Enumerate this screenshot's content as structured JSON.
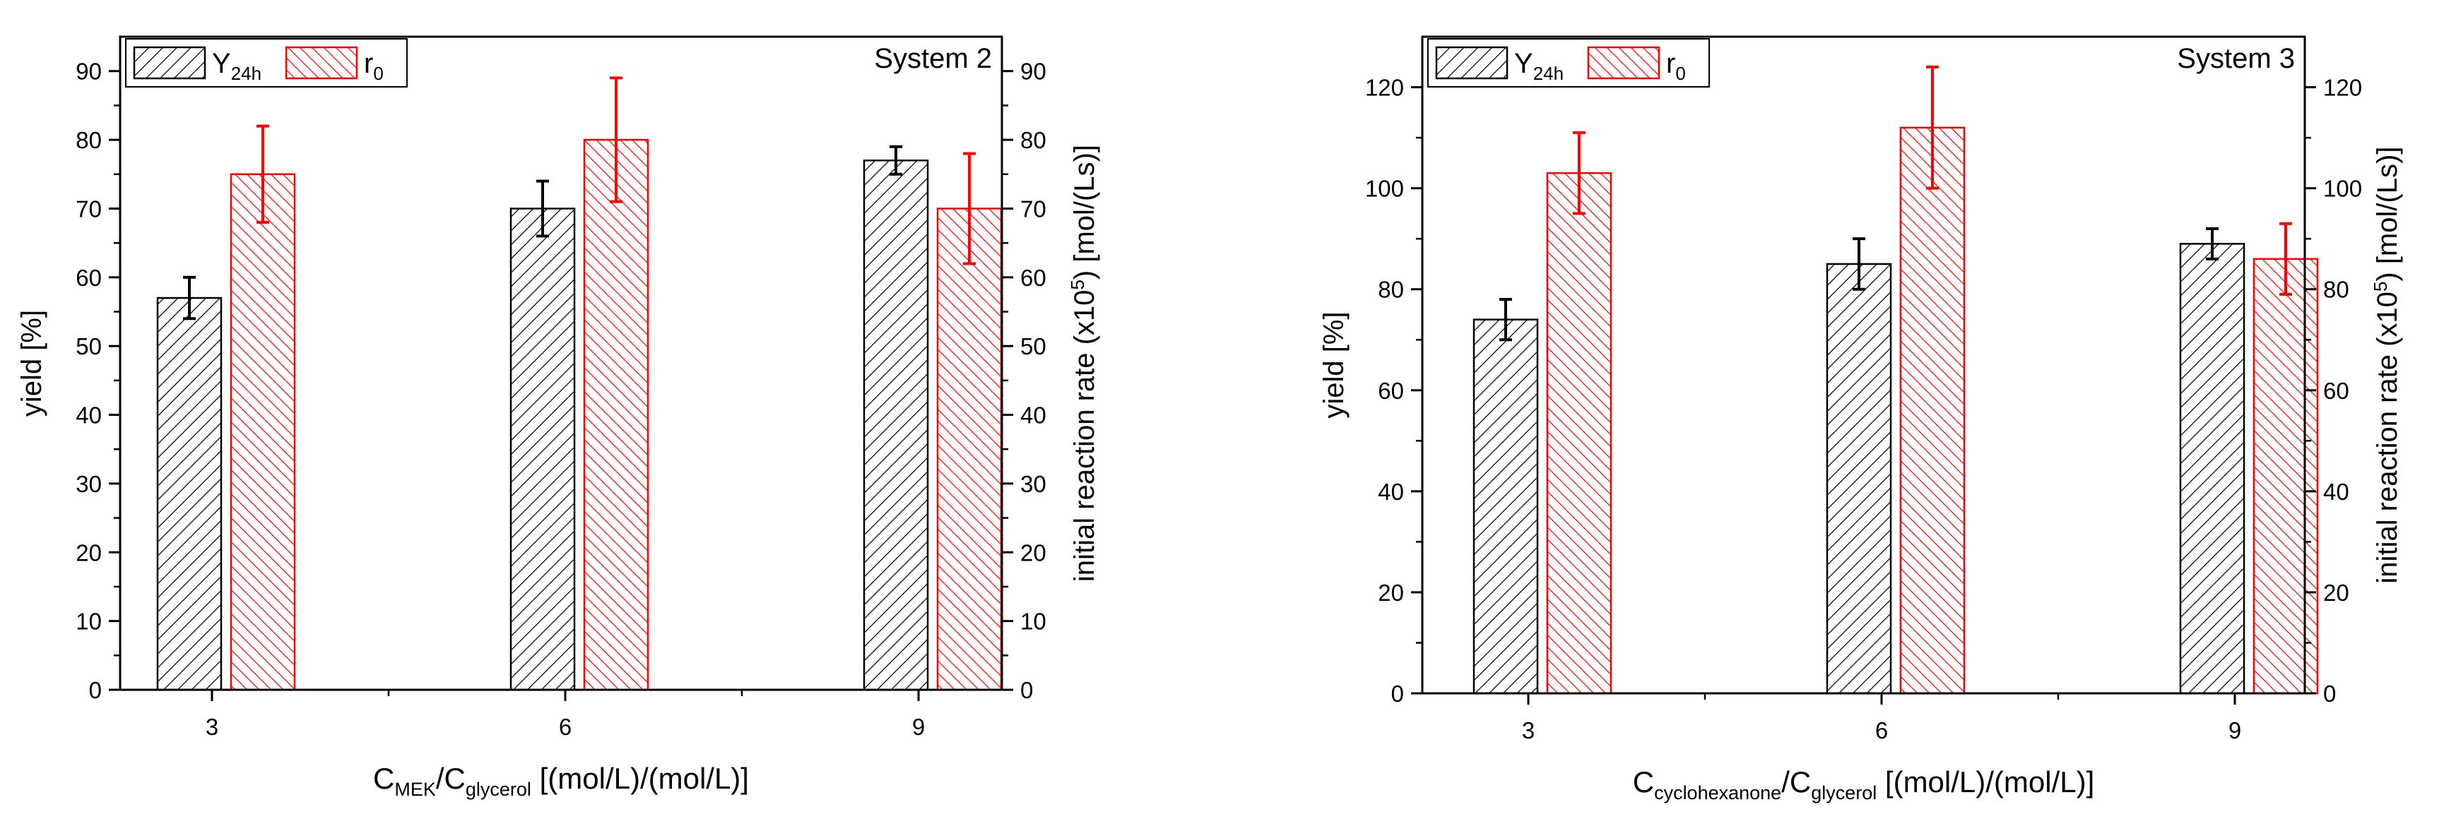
{
  "chart_data": [
    {
      "type": "bar",
      "panel_label": "System 2",
      "categories": [
        "3",
        "6",
        "9"
      ],
      "xlabel": {
        "base": "C",
        "sub1": "MEK",
        "mid": "/C",
        "sub2": "glycerol",
        "rest": " [(mol/L)/(mol/L)]"
      },
      "ylabel_left": "yield [%]",
      "ylabel_right": {
        "pre": "initial reaction rate (x10",
        "sup": "5",
        "post": ") [mol/(Ls)]"
      },
      "ylim_left": [
        0,
        95
      ],
      "ylim_right": [
        0,
        95
      ],
      "ticks_left": [
        "0",
        "10",
        "20",
        "30",
        "40",
        "50",
        "60",
        "70",
        "80",
        "90"
      ],
      "ticks_right": [
        "0",
        "10",
        "20",
        "30",
        "40",
        "50",
        "60",
        "70",
        "80",
        "90"
      ],
      "series": [
        {
          "name": "Y",
          "sub": "24h",
          "axis": "left",
          "color": "#000000",
          "values": [
            57,
            70,
            77
          ],
          "errors": [
            3,
            4,
            2
          ]
        },
        {
          "name": "r",
          "sub": "0",
          "axis": "right",
          "color": "#ff0000",
          "values": [
            75,
            80,
            70
          ],
          "errors": [
            7,
            9,
            8
          ]
        }
      ]
    },
    {
      "type": "bar",
      "panel_label": "System 3",
      "categories": [
        "3",
        "6",
        "9"
      ],
      "xlabel": {
        "base": "C",
        "sub1": "cyclohexanone",
        "mid": "/C",
        "sub2": "glycerol",
        "rest": " [(mol/L)/(mol/L)]"
      },
      "ylabel_left": "yield [%]",
      "ylabel_right": {
        "pre": "initial reaction rate (x10",
        "sup": "5",
        "post": ") [mol/(Ls)]"
      },
      "ylim_left": [
        0,
        130
      ],
      "ylim_right": [
        0,
        130
      ],
      "ticks_left": [
        "0",
        "20",
        "40",
        "60",
        "80",
        "100",
        "120"
      ],
      "ticks_right": [
        "0",
        "20",
        "40",
        "60",
        "80",
        "100",
        "120"
      ],
      "series": [
        {
          "name": "Y",
          "sub": "24h",
          "axis": "left",
          "color": "#000000",
          "values": [
            74,
            85,
            89
          ],
          "errors": [
            4,
            5,
            3
          ]
        },
        {
          "name": "r",
          "sub": "0",
          "axis": "right",
          "color": "#ff0000",
          "values": [
            103,
            112,
            86
          ],
          "errors": [
            8,
            12,
            7
          ]
        }
      ]
    }
  ]
}
